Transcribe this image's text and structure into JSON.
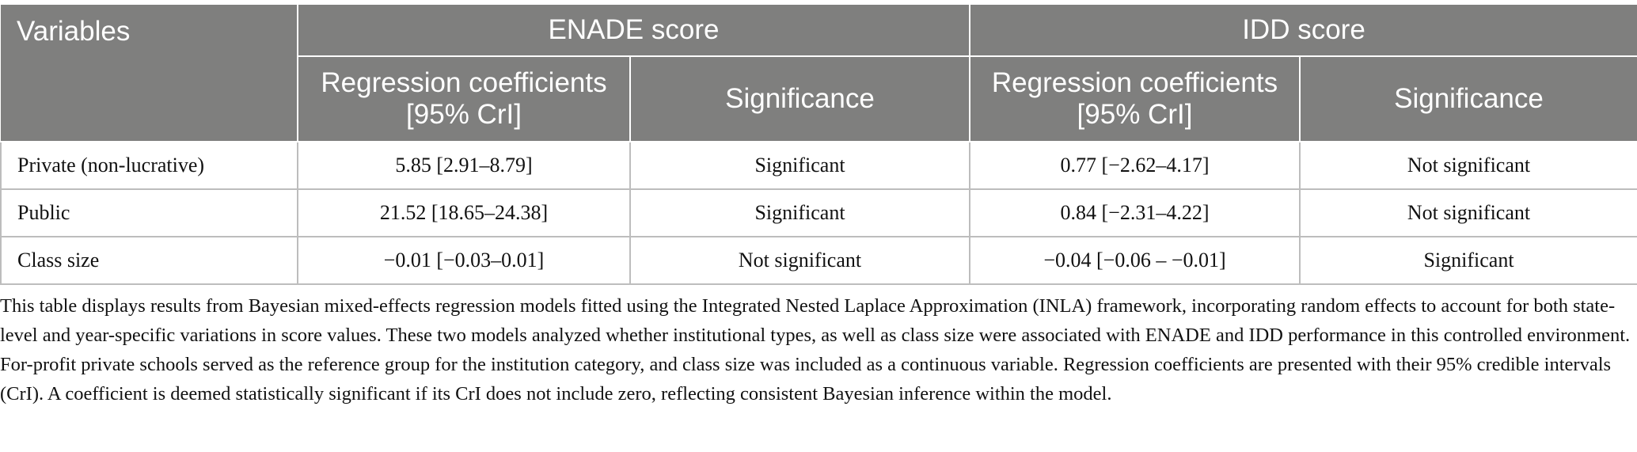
{
  "table": {
    "header": {
      "variables": "Variables",
      "groups": [
        "ENADE score",
        "IDD score"
      ],
      "subheaders": [
        "Regression coefficients [95% CrI]",
        "Significance",
        "Regression coefficients [95% CrI]",
        "Significance"
      ]
    },
    "rows": [
      [
        "Private (non-lucrative)",
        "5.85 [2.91–8.79]",
        "Significant",
        "0.77 [−2.62–4.17]",
        "Not significant"
      ],
      [
        "Public",
        "21.52 [18.65–24.38]",
        "Significant",
        "0.84 [−2.31–4.22]",
        "Not significant"
      ],
      [
        "Class size",
        "−0.01 [−0.03–0.01]",
        "Not significant",
        "−0.04 [−0.06 – −0.01]",
        "Significant"
      ]
    ],
    "caption": "This table displays results from Bayesian mixed-effects regression models fitted using the Integrated Nested Laplace Approximation (INLA) framework, incorporating random effects to account for both state-level and year-specific variations in score values. These two models analyzed whether institutional types, as well as class size were associated with ENADE and IDD performance in this controlled environment. For-profit private schools served as the reference group for the institution category, and class size was included as a continuous variable. Regression coefficients are presented with their 95% credible intervals (CrI). A coefficient is deemed statistically significant if its CrI does not include zero, reflecting consistent Bayesian inference within the model."
  }
}
